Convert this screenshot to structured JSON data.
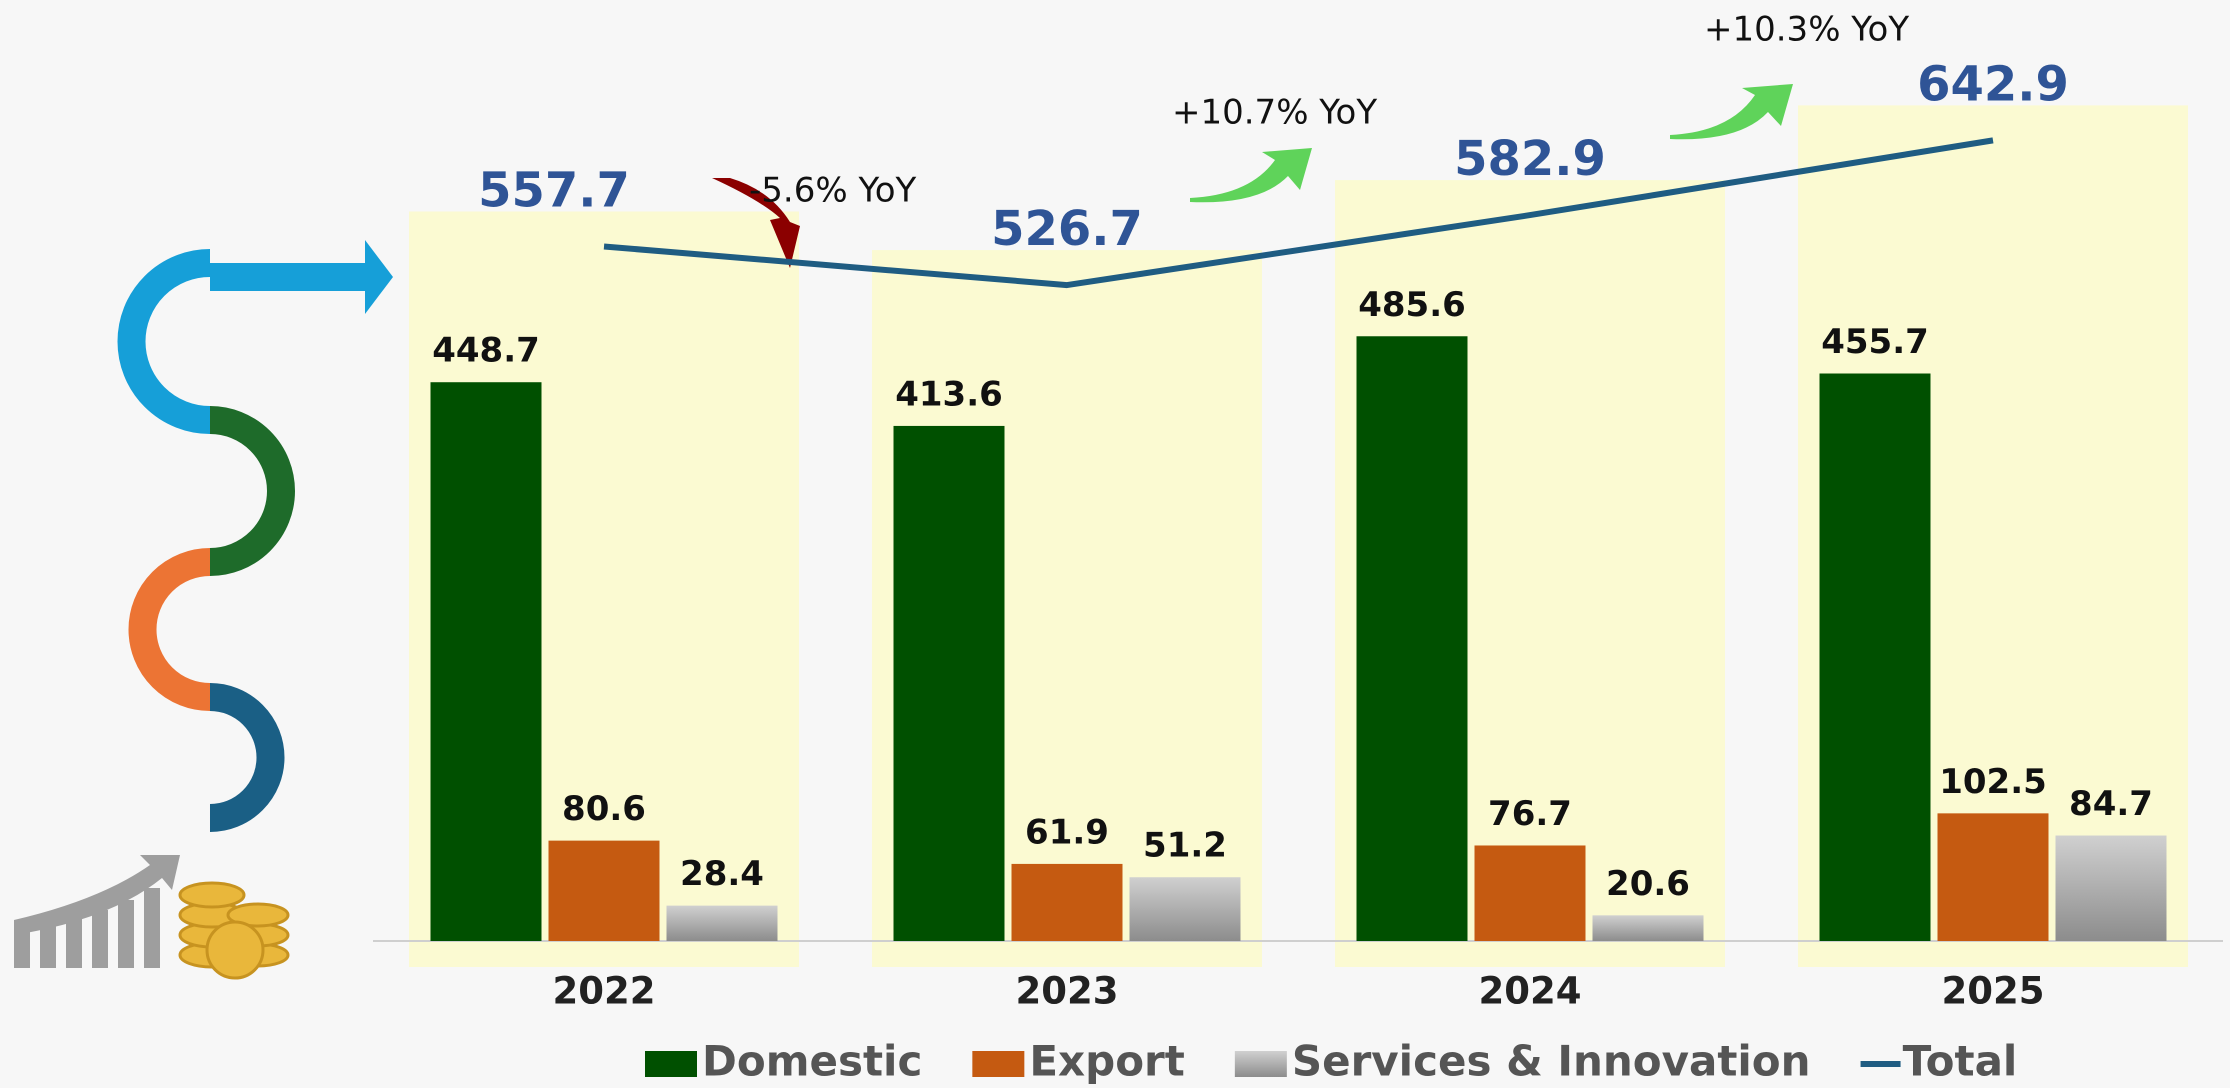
{
  "chart_data": {
    "type": "bar",
    "categories": [
      "2022",
      "2023",
      "2024",
      "2025"
    ],
    "series": [
      {
        "name": "Domestic",
        "color": "#005000",
        "values": [
          448.7,
          413.6,
          485.6,
          455.7
        ]
      },
      {
        "name": "Export",
        "color": "#c55a11",
        "values": [
          80.6,
          61.9,
          76.7,
          102.5
        ]
      },
      {
        "name": "Services & Innovation",
        "color": "#a6a6a6",
        "values": [
          28.4,
          51.2,
          20.6,
          84.7
        ]
      },
      {
        "name": "Total",
        "color": "#1f5c82",
        "type": "line",
        "values": [
          557.7,
          526.7,
          582.9,
          642.9
        ]
      }
    ],
    "annotations": [
      "-5.6% YoY",
      "+10.7% YoY",
      "+10.3% YoY"
    ],
    "ylim": [
      0,
      750
    ]
  }
}
